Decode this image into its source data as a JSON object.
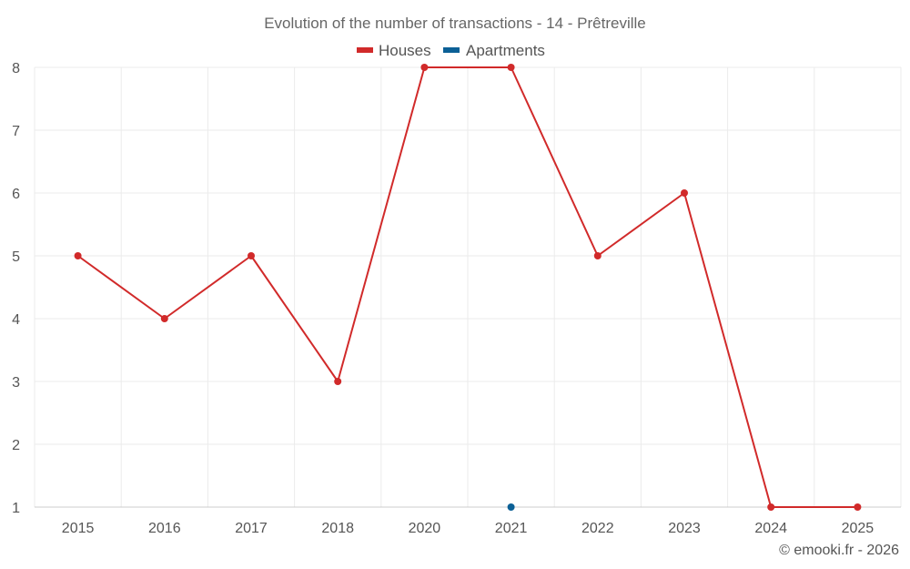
{
  "chart_data": {
    "type": "line",
    "title": "Evolution of the number of transactions - 14 - Prêtreville",
    "categories": [
      "2015",
      "2016",
      "2017",
      "2018",
      "2020",
      "2021",
      "2022",
      "2023",
      "2024",
      "2025"
    ],
    "series": [
      {
        "name": "Houses",
        "color": "#d12a2a",
        "values": [
          5,
          4,
          5,
          3,
          8,
          8,
          5,
          6,
          1,
          1
        ]
      },
      {
        "name": "Apartments",
        "color": "#0b6096",
        "values": [
          null,
          null,
          null,
          null,
          null,
          1,
          null,
          null,
          null,
          null
        ]
      }
    ],
    "yticks": [
      "1",
      "2",
      "3",
      "4",
      "5",
      "6",
      "7",
      "8"
    ],
    "ylim": [
      1,
      8
    ],
    "xlabel": "",
    "ylabel": "",
    "legend_position": "top-center",
    "grid": true
  },
  "credit": "© emooki.fr - 2026"
}
